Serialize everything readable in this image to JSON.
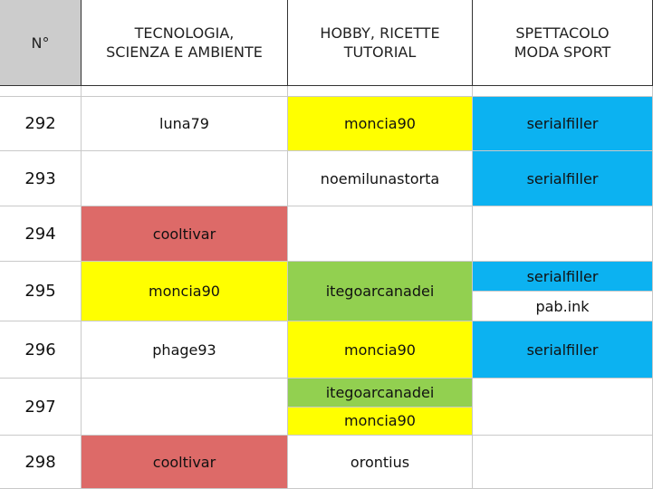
{
  "header": {
    "columns": [
      {
        "lines": [
          "N°"
        ]
      },
      {
        "lines": [
          "TECNOLOGIA,",
          "SCIENZA E AMBIENTE"
        ]
      },
      {
        "lines": [
          "HOBBY, RICETTE",
          "TUTORIAL"
        ]
      },
      {
        "lines": [
          "SPETTACOLO",
          "MODA SPORT"
        ]
      }
    ]
  },
  "rows": [
    {
      "number": 292,
      "cells": [
        [
          {
            "text": "luna79"
          }
        ],
        [
          {
            "text": "moncia90",
            "color": "#ffff00"
          }
        ],
        [
          {
            "text": "serialfiller",
            "color": "#0cb2f1"
          }
        ]
      ]
    },
    {
      "number": 293,
      "cells": [
        [],
        [
          {
            "text": "noemilunastorta"
          }
        ],
        [
          {
            "text": "serialfiller",
            "color": "#0cb2f1"
          }
        ]
      ]
    },
    {
      "number": 294,
      "cells": [
        [
          {
            "text": "cooltivar",
            "color": "#dd6a68"
          }
        ],
        [],
        []
      ]
    },
    {
      "number": 295,
      "cells": [
        [
          {
            "text": "moncia90",
            "color": "#ffff00"
          }
        ],
        [
          {
            "text": "itegoarcanadei",
            "color": "#92d050"
          }
        ],
        [
          {
            "text": "serialfiller",
            "color": "#0cb2f1"
          },
          {
            "text": "pab.ink"
          }
        ]
      ]
    },
    {
      "number": 296,
      "cells": [
        [
          {
            "text": "phage93"
          }
        ],
        [
          {
            "text": "moncia90",
            "color": "#ffff00"
          }
        ],
        [
          {
            "text": "serialfiller",
            "color": "#0cb2f1"
          }
        ]
      ]
    },
    {
      "number": 297,
      "cells": [
        [],
        [
          {
            "text": "itegoarcanadei",
            "color": "#92d050"
          },
          {
            "text": "moncia90",
            "color": "#ffff00"
          }
        ],
        []
      ]
    },
    {
      "number": 298,
      "cells": [
        [
          {
            "text": "cooltivar",
            "color": "#dd6a68"
          }
        ],
        [
          {
            "text": "orontius"
          }
        ],
        []
      ]
    }
  ]
}
